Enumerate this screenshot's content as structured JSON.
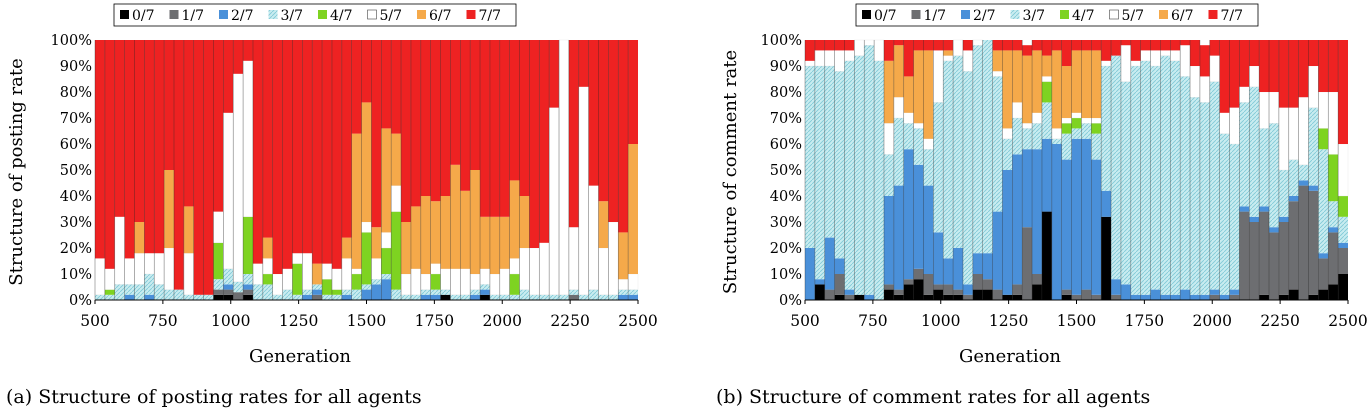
{
  "panels": [
    {
      "ylabel": "Structure of posting rate",
      "xlabel": "Generation",
      "caption": "(a) Structure of posting rates for all agents"
    },
    {
      "ylabel": "Structure of comment rate",
      "xlabel": "Generation",
      "caption": "(b) Structure of comment rates for all agents"
    }
  ],
  "legend": [
    "0/7",
    "1/7",
    "2/7",
    "3/7",
    "4/7",
    "5/7",
    "6/7",
    "7/7"
  ],
  "colors": {
    "0/7": "#000000",
    "1/7": "#6d6e71",
    "2/7": "#4a90d9",
    "3/7": "#c8ecf0",
    "4/7": "#7ed321",
    "5/7": "#ffffff",
    "6/7": "#f5a94a",
    "7/7": "#ee2222"
  },
  "chart_data": [
    {
      "type": "bar",
      "stacked": true,
      "title": "",
      "xlabel": "Generation",
      "ylabel": "Structure of posting rate",
      "ylim": [
        0,
        100
      ],
      "y_ticks": [
        "0%",
        "10%",
        "20%",
        "30%",
        "40%",
        "50%",
        "60%",
        "70%",
        "80%",
        "90%",
        "100%"
      ],
      "x_ticks": [
        500,
        750,
        1000,
        1250,
        1500,
        1750,
        2000,
        2250,
        2500
      ],
      "xlim": [
        500,
        2500
      ],
      "note": "Stacked percentage composition per generation window",
      "x": [
        500,
        560,
        620,
        680,
        740,
        800,
        860,
        920,
        980,
        1040,
        1100,
        1160,
        1220,
        1250,
        1280,
        1310,
        1340,
        1370,
        1400,
        1430,
        1460,
        1490,
        1520,
        1550,
        1580,
        1610,
        1640,
        1670,
        1700,
        1730,
        1760,
        1790,
        1820,
        1850,
        1880,
        1910,
        1940,
        1970,
        2000,
        2030,
        2060,
        2090,
        2120,
        2150,
        2180,
        2210,
        2240,
        2270,
        2300,
        2330,
        2360,
        2390,
        2420,
        2450,
        2480
      ],
      "series": [
        {
          "name": "0/7",
          "values": [
            0,
            0,
            0,
            0,
            0,
            0,
            0,
            0,
            0,
            0,
            0,
            0,
            2,
            2,
            0,
            2,
            0,
            0,
            0,
            0,
            0,
            0,
            0,
            0,
            0,
            0,
            0,
            0,
            0,
            0,
            0,
            0,
            0,
            0,
            0,
            2,
            0,
            0,
            0,
            2,
            0,
            0,
            0,
            0,
            0,
            0,
            0,
            0,
            0,
            0,
            0,
            0,
            0,
            0,
            0
          ]
        },
        {
          "name": "1/7",
          "values": [
            0,
            0,
            0,
            0,
            0,
            0,
            0,
            0,
            0,
            0,
            0,
            0,
            2,
            2,
            3,
            2,
            0,
            0,
            0,
            0,
            0,
            0,
            2,
            0,
            0,
            0,
            0,
            0,
            0,
            0,
            0,
            0,
            0,
            0,
            0,
            0,
            0,
            0,
            0,
            0,
            0,
            0,
            0,
            0,
            0,
            0,
            0,
            0,
            2,
            0,
            0,
            0,
            0,
            0,
            0
          ]
        },
        {
          "name": "2/7",
          "values": [
            0,
            0,
            0,
            2,
            0,
            2,
            0,
            0,
            0,
            0,
            0,
            0,
            0,
            2,
            0,
            2,
            0,
            0,
            0,
            0,
            0,
            2,
            2,
            0,
            0,
            2,
            0,
            4,
            6,
            8,
            0,
            0,
            0,
            2,
            2,
            0,
            0,
            0,
            2,
            2,
            0,
            0,
            0,
            0,
            0,
            0,
            0,
            0,
            0,
            0,
            0,
            0,
            0,
            2,
            2
          ]
        },
        {
          "name": "3/7",
          "values": [
            2,
            2,
            6,
            4,
            6,
            8,
            6,
            4,
            4,
            2,
            2,
            2,
            4,
            6,
            4,
            4,
            6,
            6,
            2,
            4,
            2,
            2,
            2,
            2,
            2,
            2,
            4,
            2,
            2,
            2,
            4,
            2,
            2,
            2,
            2,
            2,
            2,
            2,
            2,
            2,
            2,
            2,
            2,
            4,
            2,
            2,
            2,
            2,
            2,
            2,
            4,
            2,
            2,
            2,
            2
          ]
        },
        {
          "name": "4/7",
          "values": [
            0,
            2,
            0,
            0,
            0,
            0,
            0,
            0,
            0,
            0,
            0,
            0,
            14,
            0,
            0,
            22,
            0,
            4,
            0,
            0,
            12,
            0,
            0,
            6,
            2,
            0,
            6,
            20,
            0,
            10,
            30,
            0,
            0,
            0,
            6,
            0,
            0,
            0,
            0,
            0,
            0,
            0,
            8,
            0,
            0,
            0,
            0,
            0,
            0,
            0,
            0,
            0,
            0,
            0,
            0
          ]
        },
        {
          "name": "5/7",
          "values": [
            14,
            8,
            26,
            10,
            12,
            8,
            12,
            16,
            0,
            16,
            0,
            0,
            12,
            60,
            80,
            60,
            8,
            6,
            8,
            8,
            4,
            14,
            0,
            6,
            8,
            12,
            2,
            4,
            8,
            6,
            10,
            8,
            10,
            6,
            4,
            8,
            10,
            10,
            6,
            6,
            8,
            10,
            6,
            16,
            18,
            20,
            72,
            98,
            24,
            80,
            40,
            18,
            28,
            4,
            6
          ]
        },
        {
          "name": "6/7",
          "values": [
            0,
            0,
            0,
            0,
            12,
            0,
            0,
            30,
            0,
            18,
            0,
            0,
            0,
            0,
            0,
            0,
            0,
            8,
            0,
            0,
            0,
            0,
            8,
            0,
            0,
            8,
            52,
            46,
            12,
            40,
            20,
            20,
            24,
            30,
            24,
            28,
            40,
            30,
            40,
            20,
            22,
            20,
            30,
            20,
            0,
            0,
            0,
            0,
            0,
            0,
            0,
            18,
            0,
            18,
            50
          ]
        },
        {
          "name": "7/7",
          "values": [
            84,
            88,
            68,
            84,
            70,
            82,
            82,
            50,
            96,
            64,
            98,
            98,
            66,
            28,
            13,
            8,
            86,
            76,
            90,
            88,
            82,
            82,
            86,
            86,
            88,
            76,
            36,
            24,
            72,
            34,
            36,
            70,
            64,
            60,
            62,
            60,
            48,
            58,
            50,
            68,
            70,
            68,
            54,
            60,
            80,
            78,
            26,
            0,
            72,
            18,
            56,
            62,
            70,
            74,
            40
          ]
        }
      ]
    },
    {
      "type": "bar",
      "stacked": true,
      "title": "",
      "xlabel": "Generation",
      "ylabel": "Structure of comment rate",
      "ylim": [
        0,
        100
      ],
      "y_ticks": [
        "0%",
        "10%",
        "20%",
        "30%",
        "40%",
        "50%",
        "60%",
        "70%",
        "80%",
        "90%",
        "100%"
      ],
      "x_ticks": [
        500,
        750,
        1000,
        1250,
        1500,
        1750,
        2000,
        2250,
        2500
      ],
      "xlim": [
        500,
        2500
      ],
      "note": "Stacked percentage composition per generation window",
      "x": [
        500,
        560,
        620,
        680,
        740,
        800,
        860,
        920,
        980,
        1040,
        1100,
        1160,
        1220,
        1250,
        1280,
        1310,
        1340,
        1370,
        1400,
        1430,
        1460,
        1490,
        1520,
        1550,
        1580,
        1610,
        1640,
        1670,
        1700,
        1730,
        1760,
        1790,
        1820,
        1850,
        1880,
        1910,
        1940,
        1970,
        2000,
        2030,
        2060,
        2090,
        2120,
        2150,
        2180,
        2210,
        2240,
        2270,
        2300,
        2330,
        2360,
        2390,
        2420,
        2450,
        2480
      ],
      "series": [
        {
          "name": "0/7",
          "values": [
            0,
            6,
            0,
            2,
            0,
            2,
            0,
            0,
            4,
            2,
            6,
            8,
            2,
            4,
            2,
            2,
            0,
            4,
            4,
            0,
            2,
            2,
            0,
            6,
            34,
            0,
            2,
            0,
            0,
            0,
            32,
            0,
            0,
            0,
            0,
            0,
            0,
            0,
            0,
            0,
            0,
            0,
            0,
            0,
            0,
            0,
            2,
            0,
            2,
            4,
            0,
            2,
            4,
            6,
            10
          ]
        },
        {
          "name": "1/7",
          "values": [
            0,
            0,
            4,
            8,
            2,
            0,
            0,
            0,
            2,
            2,
            2,
            4,
            8,
            2,
            4,
            2,
            2,
            6,
            4,
            4,
            0,
            4,
            28,
            4,
            0,
            0,
            2,
            2,
            4,
            2,
            0,
            2,
            0,
            0,
            0,
            0,
            0,
            0,
            0,
            0,
            0,
            2,
            0,
            2,
            34,
            30,
            32,
            26,
            28,
            34,
            44,
            40,
            12,
            20,
            10
          ]
        },
        {
          "name": "2/7",
          "values": [
            20,
            2,
            20,
            6,
            2,
            0,
            2,
            0,
            34,
            40,
            50,
            40,
            34,
            20,
            10,
            16,
            4,
            8,
            10,
            30,
            48,
            50,
            30,
            48,
            28,
            60,
            50,
            60,
            58,
            52,
            10,
            6,
            6,
            2,
            2,
            4,
            2,
            2,
            4,
            2,
            2,
            2,
            2,
            2,
            2,
            2,
            2,
            2,
            2,
            2,
            2,
            2,
            2,
            2,
            2
          ]
        },
        {
          "name": "3/7",
          "values": [
            70,
            82,
            66,
            72,
            88,
            92,
            96,
            92,
            16,
            26,
            10,
            14,
            14,
            50,
            76,
            74,
            82,
            80,
            82,
            52,
            12,
            14,
            8,
            10,
            14,
            2,
            10,
            4,
            6,
            10,
            48,
            86,
            78,
            88,
            90,
            86,
            92,
            90,
            82,
            76,
            74,
            80,
            62,
            56,
            40,
            50,
            30,
            40,
            18,
            14,
            6,
            30,
            40,
            10,
            10
          ]
        },
        {
          "name": "4/7",
          "values": [
            0,
            0,
            0,
            0,
            0,
            0,
            0,
            0,
            0,
            0,
            0,
            0,
            0,
            0,
            0,
            0,
            0,
            0,
            0,
            0,
            0,
            0,
            0,
            0,
            8,
            0,
            4,
            4,
            0,
            4,
            0,
            0,
            0,
            0,
            0,
            0,
            0,
            0,
            0,
            0,
            0,
            0,
            0,
            0,
            0,
            0,
            0,
            0,
            0,
            0,
            0,
            0,
            8,
            18,
            8
          ]
        },
        {
          "name": "5/7",
          "values": [
            2,
            6,
            6,
            8,
            4,
            6,
            2,
            8,
            12,
            8,
            4,
            2,
            4,
            20,
            2,
            6,
            8,
            2,
            0,
            2,
            4,
            6,
            2,
            4,
            2,
            4,
            2,
            2,
            2,
            2,
            2,
            0,
            14,
            2,
            4,
            6,
            2,
            4,
            12,
            12,
            10,
            10,
            8,
            14,
            6,
            8,
            14,
            12,
            24,
            20,
            26,
            16,
            14,
            24,
            20
          ]
        },
        {
          "name": "6/7",
          "values": [
            0,
            0,
            0,
            0,
            0,
            0,
            0,
            0,
            24,
            20,
            14,
            28,
            34,
            0,
            2,
            0,
            0,
            0,
            0,
            8,
            30,
            20,
            26,
            24,
            8,
            30,
            20,
            24,
            26,
            26,
            0,
            0,
            0,
            0,
            0,
            0,
            0,
            0,
            0,
            0,
            0,
            0,
            0,
            0,
            0,
            0,
            0,
            0,
            0,
            0,
            0,
            0,
            0,
            0,
            0
          ]
        },
        {
          "name": "7/7",
          "values": [
            8,
            4,
            4,
            6,
            4,
            0,
            0,
            0,
            8,
            2,
            14,
            4,
            4,
            4,
            4,
            0,
            4,
            0,
            0,
            4,
            4,
            4,
            4,
            4,
            6,
            4,
            10,
            4,
            4,
            4,
            8,
            6,
            2,
            8,
            4,
            4,
            4,
            4,
            2,
            10,
            12,
            6,
            28,
            26,
            18,
            10,
            20,
            20,
            26,
            26,
            22,
            10,
            20,
            20,
            40
          ]
        }
      ]
    }
  ]
}
